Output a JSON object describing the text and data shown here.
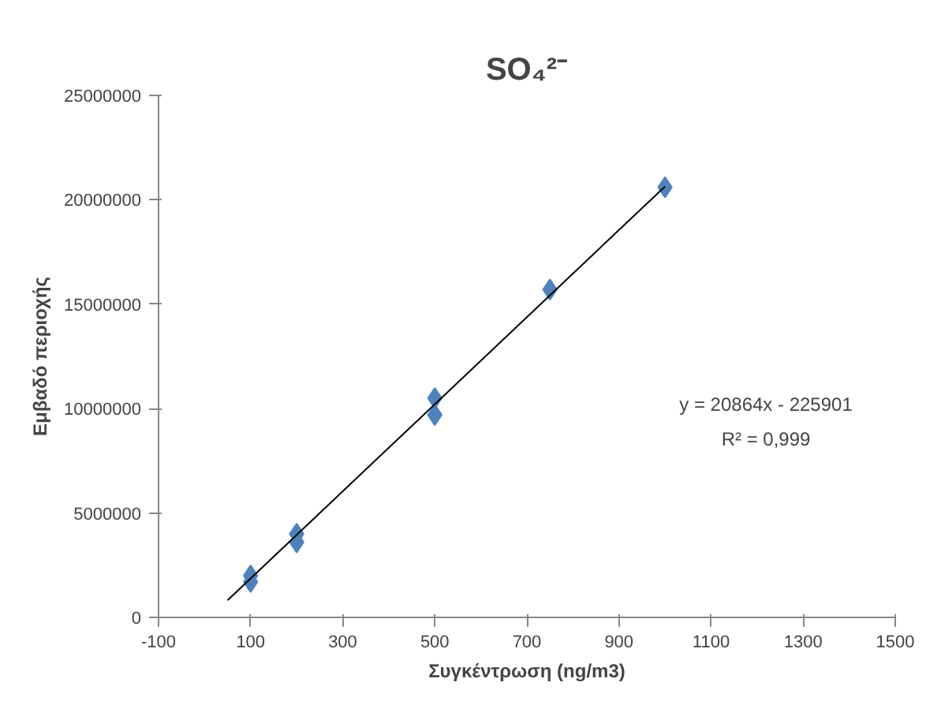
{
  "chart_data": {
    "type": "scatter",
    "title": "SO₄²⁻",
    "xlabel": "Συγκέντρωση (ng/m3)",
    "ylabel": "Εμβαδό περιοχής",
    "series": [
      {
        "color": "#4f81bd",
        "marker": "diamond",
        "x": [
          100,
          100,
          200,
          200,
          500,
          500,
          750,
          1000
        ],
        "values": [
          1700000,
          2000000,
          3600000,
          4000000,
          9700000,
          10500000,
          15700000,
          20600000
        ]
      },
      {
        "type": "line",
        "color": "#000000",
        "x": [
          50,
          1000
        ],
        "values": [
          820000,
          20640000
        ]
      }
    ],
    "grid": false,
    "xlim": [
      -100,
      1500
    ],
    "xticks": [
      -100,
      100,
      300,
      500,
      700,
      900,
      1100,
      1300,
      1500
    ],
    "ylim": [
      0,
      25000000
    ],
    "yticks": [
      0,
      5000000,
      10000000,
      15000000,
      20000000,
      25000000
    ],
    "annotations": [
      "y = 20864x - 225901",
      "R² = 0,999"
    ]
  }
}
